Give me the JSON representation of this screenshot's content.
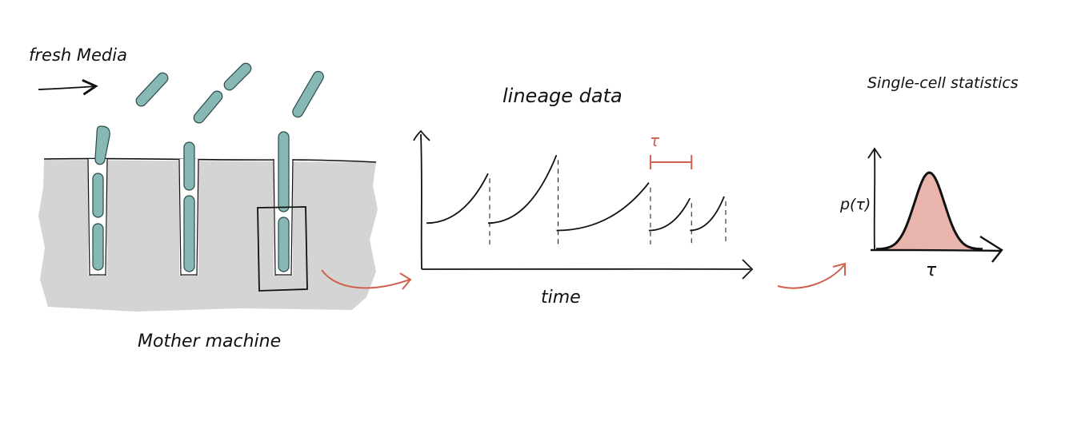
{
  "labels": {
    "fresh_media": "fresh Media",
    "mother_machine": "Mother machine",
    "lineage_data": "lineage data",
    "time_axis": "time",
    "tau_marker": "τ",
    "single_cell_stats": "Single-cell statistics",
    "p_tau": "p(τ)",
    "tau_axis": "τ"
  },
  "colors": {
    "cell_fill": "#86b9b5",
    "chip_gray": "#d4d4d4",
    "ink": "#111111",
    "accent_red": "#d0604f",
    "distribution_fill": "#e8b4ac"
  },
  "lineage_chart": {
    "type": "line",
    "xlabel": "time",
    "segments": [
      {
        "t_start": 0.0,
        "t_end": 1.8,
        "y_start": 0.18,
        "y_end": 0.72
      },
      {
        "t_start": 1.8,
        "t_end": 3.8,
        "y_start": 0.18,
        "y_end": 0.92
      },
      {
        "t_start": 3.8,
        "t_end": 6.5,
        "y_start": 0.1,
        "y_end": 0.62
      },
      {
        "t_start": 6.5,
        "t_end": 7.7,
        "y_start": 0.1,
        "y_end": 0.45
      },
      {
        "t_start": 7.7,
        "t_end": 8.7,
        "y_start": 0.1,
        "y_end": 0.47
      }
    ],
    "divisions_t": [
      1.8,
      3.8,
      6.5,
      7.7,
      8.7
    ],
    "tau_interval": [
      6.5,
      7.7
    ]
  },
  "distribution_chart": {
    "type": "area",
    "ylabel": "p(τ)",
    "xlabel": "τ",
    "peak_tau": 0.5,
    "spread": 0.14
  }
}
